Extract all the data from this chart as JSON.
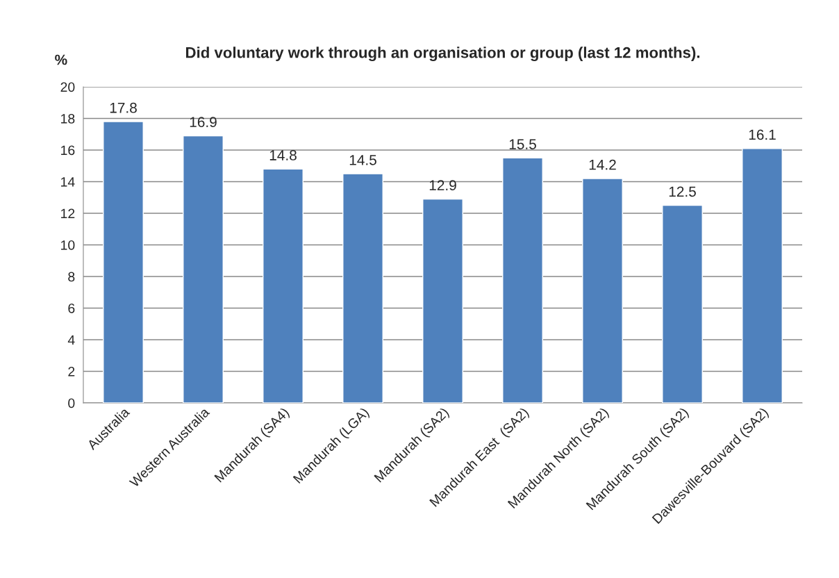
{
  "chart_data": {
    "type": "bar",
    "title": "Did voluntary work through an organisation or group (last 12 months).",
    "ylabel": "%",
    "categories": [
      "Australia",
      "Western Australia",
      "Mandurah (SA4)",
      "Mandurah (LGA)",
      "Mandurah (SA2)",
      "Mandurah East  (SA2)",
      "Mandurah North (SA2)",
      "Mandurah South (SA2)",
      "Dawesville-Bouvard (SA2)"
    ],
    "values": [
      17.8,
      16.9,
      14.8,
      14.5,
      12.9,
      15.5,
      14.2,
      12.5,
      16.1
    ],
    "color": "#4f81bd",
    "ylim": [
      0,
      20
    ],
    "yticks": [
      0,
      2,
      4,
      6,
      8,
      10,
      12,
      14,
      16,
      18,
      20
    ],
    "grid": "y",
    "data_labels": true,
    "legend": false
  }
}
